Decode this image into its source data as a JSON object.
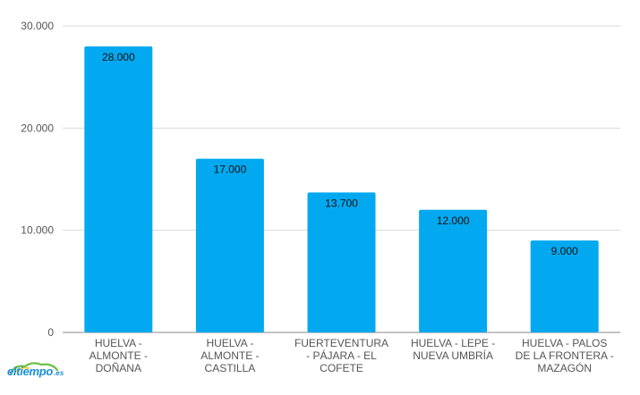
{
  "chart_data": {
    "type": "bar",
    "categories": [
      [
        "HUELVA -",
        "ALMONTE -",
        "DOÑANA"
      ],
      [
        "HUELVA -",
        "ALMONTE -",
        "CASTILLA"
      ],
      [
        "FUERTEVENTURA",
        "- PÁJARA - EL",
        "COFETE"
      ],
      [
        "HUELVA - LEPE -",
        "NUEVA UMBRÍA"
      ],
      [
        "HUELVA - PALOS",
        "DE LA FRONTERA -",
        "MAZAGÓN"
      ]
    ],
    "values": [
      28000,
      17000,
      13700,
      12000,
      9000
    ],
    "data_labels": [
      "28.000",
      "17.000",
      "13.700",
      "12.000",
      "9.000"
    ],
    "y_ticks": [
      0,
      10000,
      20000,
      30000
    ],
    "y_tick_labels": [
      "0",
      "10.000",
      "20.000",
      "30.000"
    ],
    "ylim": [
      0,
      30000
    ],
    "grid": true,
    "bar_color": "#03a9f0",
    "grid_color": "#d9d9d9"
  },
  "watermark": {
    "text": "eltiempo",
    "suffix": ".es",
    "color": "#1a8fd6"
  }
}
